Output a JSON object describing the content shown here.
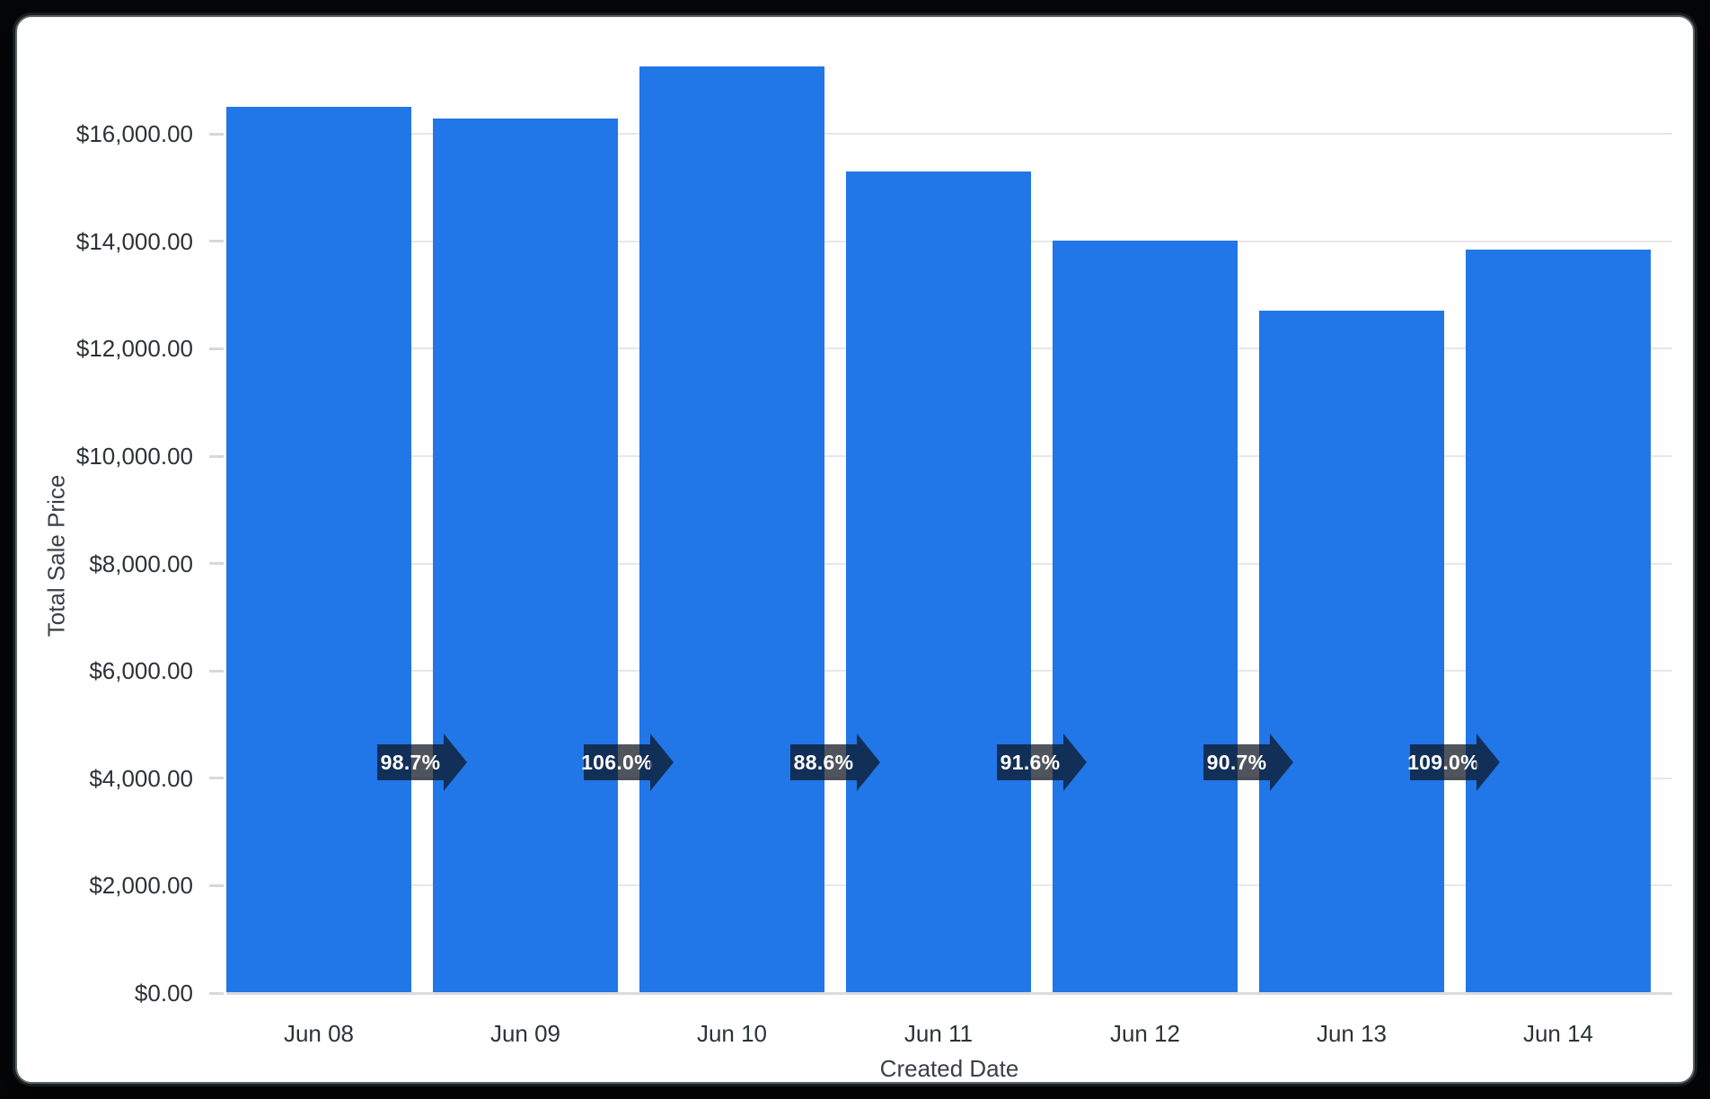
{
  "frame": {
    "background_color": "#050607",
    "card_background": "#ffffff",
    "card_border_color": "#5d6568"
  },
  "chart_data": {
    "type": "bar",
    "title": "",
    "xlabel": "Created Date",
    "ylabel": "Total Sale Price",
    "categories": [
      "Jun 08",
      "Jun 09",
      "Jun 10",
      "Jun 11",
      "Jun 12",
      "Jun 13",
      "Jun 14"
    ],
    "values": [
      16500,
      16287,
      17264,
      15296,
      14011,
      12708,
      13852
    ],
    "bar_color": "#2176e8",
    "ylim": [
      0,
      17480
    ],
    "y_ticks": [
      0,
      2000,
      4000,
      6000,
      8000,
      10000,
      12000,
      14000,
      16000
    ],
    "y_tick_labels": [
      "$0.00",
      "$2,000.00",
      "$4,000.00",
      "$6,000.00",
      "$8,000.00",
      "$10,000.00",
      "$12,000.00",
      "$14,000.00",
      "$16,000.00"
    ],
    "grid": "horizontal",
    "legend": "none",
    "change_markers": [
      {
        "from": "Jun 08",
        "to": "Jun 09",
        "label": "98.7%"
      },
      {
        "from": "Jun 09",
        "to": "Jun 10",
        "label": "106.0%"
      },
      {
        "from": "Jun 10",
        "to": "Jun 11",
        "label": "88.6%"
      },
      {
        "from": "Jun 11",
        "to": "Jun 12",
        "label": "91.6%"
      },
      {
        "from": "Jun 12",
        "to": "Jun 13",
        "label": "90.7%"
      },
      {
        "from": "Jun 13",
        "to": "Jun 14",
        "label": "109.0%"
      }
    ],
    "marker_value_position": 4290,
    "marker_fill": "rgba(13,20,31,0.72)",
    "marker_text_color": "#ffffff"
  }
}
